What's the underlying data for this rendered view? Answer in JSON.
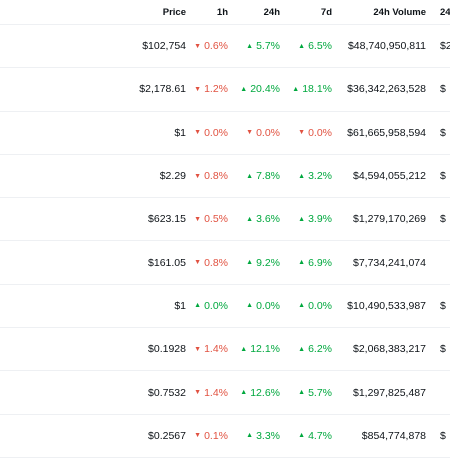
{
  "colors": {
    "up": "#00a83e",
    "down": "#e15241",
    "text": "#0d1217",
    "divider": "#eef0f3"
  },
  "icons": {
    "up": "caret-up-icon",
    "down": "caret-down-icon"
  },
  "header": {
    "price": "Price",
    "h1": "1h",
    "h24": "24h",
    "d7": "7d",
    "volume": "24h Volume",
    "cut_col": "24"
  },
  "rows": [
    {
      "price": "$102,754",
      "h1": {
        "dir": "down",
        "val": "0.6%"
      },
      "h24": {
        "dir": "up",
        "val": "5.7%"
      },
      "d7": {
        "dir": "up",
        "val": "6.5%"
      },
      "volume": "$48,740,950,811",
      "cut": "$2"
    },
    {
      "price": "$2,178.61",
      "h1": {
        "dir": "down",
        "val": "1.2%"
      },
      "h24": {
        "dir": "up",
        "val": "20.4%"
      },
      "d7": {
        "dir": "up",
        "val": "18.1%"
      },
      "volume": "$36,342,263,528",
      "cut": "$"
    },
    {
      "price": "$1",
      "h1": {
        "dir": "down",
        "val": "0.0%"
      },
      "h24": {
        "dir": "down",
        "val": "0.0%"
      },
      "d7": {
        "dir": "down",
        "val": "0.0%"
      },
      "volume": "$61,665,958,594",
      "cut": "$"
    },
    {
      "price": "$2.29",
      "h1": {
        "dir": "down",
        "val": "0.8%"
      },
      "h24": {
        "dir": "up",
        "val": "7.8%"
      },
      "d7": {
        "dir": "up",
        "val": "3.2%"
      },
      "volume": "$4,594,055,212",
      "cut": "$"
    },
    {
      "price": "$623.15",
      "h1": {
        "dir": "down",
        "val": "0.5%"
      },
      "h24": {
        "dir": "up",
        "val": "3.6%"
      },
      "d7": {
        "dir": "up",
        "val": "3.9%"
      },
      "volume": "$1,279,170,269",
      "cut": "$"
    },
    {
      "price": "$161.05",
      "h1": {
        "dir": "down",
        "val": "0.8%"
      },
      "h24": {
        "dir": "up",
        "val": "9.2%"
      },
      "d7": {
        "dir": "up",
        "val": "6.9%"
      },
      "volume": "$7,734,241,074",
      "cut": ""
    },
    {
      "price": "$1",
      "h1": {
        "dir": "up",
        "val": "0.0%"
      },
      "h24": {
        "dir": "up",
        "val": "0.0%"
      },
      "d7": {
        "dir": "up",
        "val": "0.0%"
      },
      "volume": "$10,490,533,987",
      "cut": "$"
    },
    {
      "price": "$0.1928",
      "h1": {
        "dir": "down",
        "val": "1.4%"
      },
      "h24": {
        "dir": "up",
        "val": "12.1%"
      },
      "d7": {
        "dir": "up",
        "val": "6.2%"
      },
      "volume": "$2,068,383,217",
      "cut": "$"
    },
    {
      "price": "$0.7532",
      "h1": {
        "dir": "down",
        "val": "1.4%"
      },
      "h24": {
        "dir": "up",
        "val": "12.6%"
      },
      "d7": {
        "dir": "up",
        "val": "5.7%"
      },
      "volume": "$1,297,825,487",
      "cut": ""
    },
    {
      "price": "$0.2567",
      "h1": {
        "dir": "down",
        "val": "0.1%"
      },
      "h24": {
        "dir": "up",
        "val": "3.3%"
      },
      "d7": {
        "dir": "up",
        "val": "4.7%"
      },
      "volume": "$854,774,878",
      "cut": "$"
    }
  ]
}
